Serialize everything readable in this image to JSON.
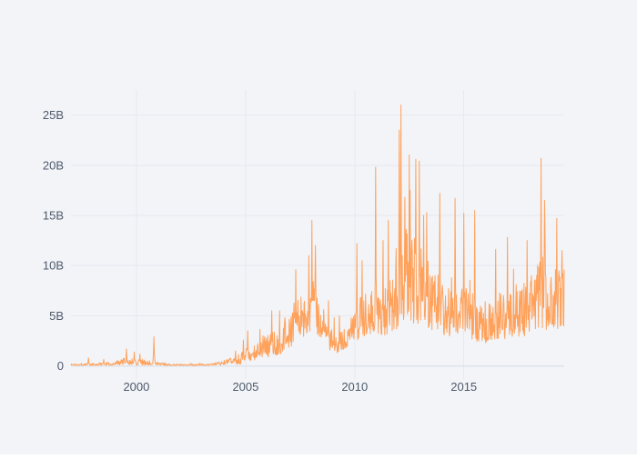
{
  "figure": {
    "background_color": "#f2f4f8",
    "grid_color": "#e6e9ef",
    "zeroline_color": "#dfe3ea",
    "tick_label_color": "#4e5a6a",
    "tick_font_size": 13
  },
  "chart_data": {
    "type": "line",
    "title": "",
    "xlabel": "",
    "ylabel": "",
    "legend": false,
    "grid": true,
    "x_axis": {
      "range": [
        1997.0,
        2019.6
      ],
      "ticks": [
        2000,
        2005,
        2010,
        2015
      ],
      "tick_labels": [
        "2000",
        "2005",
        "2010",
        "2015"
      ]
    },
    "y_axis": {
      "range": [
        -1.3,
        27.5
      ],
      "ticks": [
        0,
        5,
        10,
        15,
        20,
        25
      ],
      "tick_labels": [
        "0",
        "5B",
        "10B",
        "15B",
        "20B",
        "25B"
      ]
    },
    "series": [
      {
        "name": "daily-volume",
        "color": "#FFA15A",
        "line_width": 1,
        "units": "B",
        "synthesis": {
          "seed": 1337,
          "step_years": 0.02,
          "envelope": [
            [
              1997.0,
              0.05,
              0.25
            ],
            [
              1998.0,
              0.05,
              0.3
            ],
            [
              1999.0,
              0.08,
              0.45
            ],
            [
              1999.6,
              0.1,
              0.9
            ],
            [
              2000.2,
              0.1,
              0.7
            ],
            [
              2000.9,
              0.08,
              0.4
            ],
            [
              2001.5,
              0.05,
              0.2
            ],
            [
              2002.5,
              0.04,
              0.18
            ],
            [
              2003.5,
              0.05,
              0.25
            ],
            [
              2004.2,
              0.1,
              0.7
            ],
            [
              2004.7,
              0.15,
              1.2
            ],
            [
              2005.0,
              0.3,
              1.8
            ],
            [
              2005.5,
              0.5,
              2.2
            ],
            [
              2006.0,
              0.8,
              3.2
            ],
            [
              2006.6,
              1.2,
              4.2
            ],
            [
              2007.0,
              1.8,
              5.0
            ],
            [
              2007.6,
              2.8,
              7.5
            ],
            [
              2008.0,
              3.5,
              9.5
            ],
            [
              2008.35,
              3.0,
              8.0
            ],
            [
              2008.7,
              1.8,
              4.5
            ],
            [
              2009.1,
              1.2,
              3.2
            ],
            [
              2009.6,
              1.8,
              3.8
            ],
            [
              2010.0,
              2.5,
              6.0
            ],
            [
              2010.6,
              3.0,
              8.0
            ],
            [
              2011.1,
              3.2,
              8.8
            ],
            [
              2011.6,
              3.0,
              8.0
            ],
            [
              2012.0,
              3.5,
              11.0
            ],
            [
              2012.5,
              4.5,
              14.5
            ],
            [
              2013.0,
              3.8,
              12.0
            ],
            [
              2013.6,
              3.2,
              9.5
            ],
            [
              2014.2,
              3.0,
              8.8
            ],
            [
              2015.0,
              3.0,
              9.0
            ],
            [
              2015.9,
              2.2,
              6.5
            ],
            [
              2016.6,
              2.6,
              7.5
            ],
            [
              2017.2,
              2.8,
              8.0
            ],
            [
              2018.0,
              3.0,
              9.0
            ],
            [
              2018.6,
              3.8,
              11.0
            ],
            [
              2019.0,
              3.4,
              9.5
            ],
            [
              2019.6,
              3.8,
              10.5
            ]
          ],
          "spikes": [
            [
              1997.8,
              0.8
            ],
            [
              1998.5,
              0.65
            ],
            [
              1999.55,
              1.7
            ],
            [
              1999.9,
              1.4
            ],
            [
              2000.15,
              1.2
            ],
            [
              2000.8,
              2.9
            ],
            [
              2004.55,
              1.5
            ],
            [
              2004.9,
              2.6
            ],
            [
              2005.1,
              3.5
            ],
            [
              2005.8,
              3.0
            ],
            [
              2006.2,
              5.5
            ],
            [
              2006.8,
              4.8
            ],
            [
              2007.3,
              9.6
            ],
            [
              2007.9,
              11.0
            ],
            [
              2008.05,
              14.5
            ],
            [
              2008.2,
              12.0
            ],
            [
              2008.8,
              6.5
            ],
            [
              2009.3,
              5.0
            ],
            [
              2010.1,
              12.2
            ],
            [
              2010.35,
              10.5
            ],
            [
              2010.95,
              19.8
            ],
            [
              2011.3,
              12.5
            ],
            [
              2011.55,
              14.5
            ],
            [
              2012.05,
              23.5
            ],
            [
              2012.12,
              26.0
            ],
            [
              2012.3,
              16.8
            ],
            [
              2012.55,
              17.5
            ],
            [
              2012.8,
              20.6
            ],
            [
              2012.95,
              20.4
            ],
            [
              2013.15,
              15.0
            ],
            [
              2013.3,
              15.3
            ],
            [
              2013.9,
              17.2
            ],
            [
              2014.6,
              16.7
            ],
            [
              2015.0,
              15.2
            ],
            [
              2015.5,
              15.5
            ],
            [
              2016.45,
              11.6
            ],
            [
              2017.0,
              12.8
            ],
            [
              2017.9,
              12.5
            ],
            [
              2018.55,
              20.7
            ],
            [
              2018.7,
              16.5
            ],
            [
              2019.25,
              14.7
            ],
            [
              2019.5,
              11.5
            ]
          ]
        }
      }
    ]
  }
}
